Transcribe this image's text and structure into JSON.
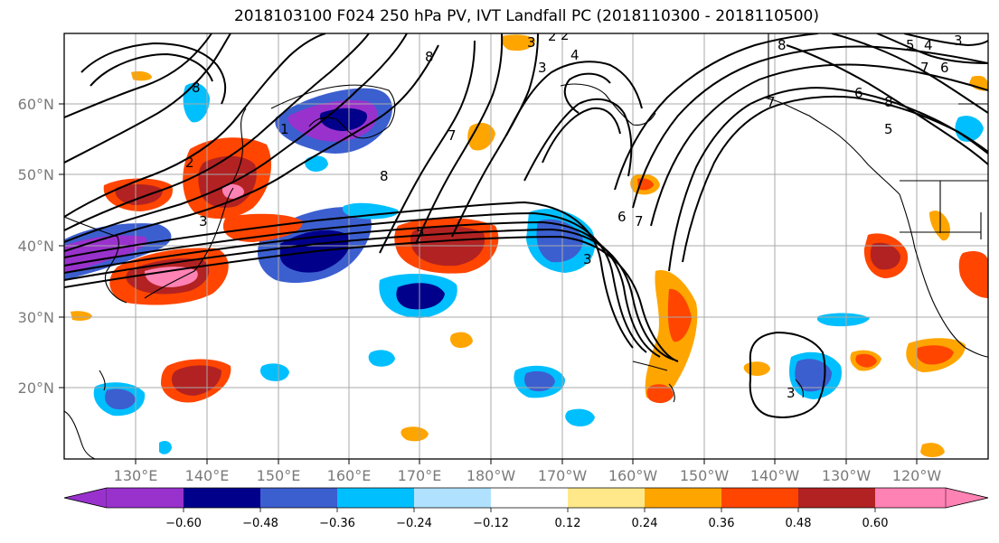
{
  "title": "2018103100 F024 250 hPa PV, IVT Landfall PC (2018110300 - 2018110500)",
  "lat_ticks": [
    "60°N",
    "50°N",
    "40°N",
    "30°N",
    "20°N"
  ],
  "lon_ticks": [
    "130°E",
    "140°E",
    "150°E",
    "160°E",
    "170°E",
    "180°W",
    "170°W",
    "160°W",
    "150°W",
    "140°W",
    "130°W",
    "120°W"
  ],
  "colorbar": {
    "ticks": [
      "−0.60",
      "−0.48",
      "−0.36",
      "−0.24",
      "−0.12",
      "0.12",
      "0.24",
      "0.36",
      "0.48",
      "0.60"
    ],
    "colors": [
      "#9932cc",
      "#00008b",
      "#3c5fd0",
      "#00bfff",
      "#b0e2ff",
      "#ffffff",
      "#ffe88a",
      "#ffa500",
      "#ff4500",
      "#b22222",
      "#ff82b4",
      "#ff82b4"
    ]
  },
  "contour_labels": [
    "1",
    "2",
    "3",
    "8",
    "8",
    "7",
    "3",
    "3",
    "2",
    "4",
    "3",
    "8",
    "5",
    "4",
    "3",
    "6",
    "7",
    "8",
    "6",
    "5",
    "6",
    "7",
    "8",
    "7",
    "3",
    "2",
    "5"
  ],
  "anomaly_colors": {
    "neg_strong": "#9932cc",
    "neg_dark": "#00008b",
    "neg_mid": "#3c5fd0",
    "neg_light": "#00bfff",
    "pos_light": "#ffa500",
    "pos_mid": "#ff4500",
    "pos_dark": "#b22222",
    "pos_strong": "#ff82b4"
  }
}
